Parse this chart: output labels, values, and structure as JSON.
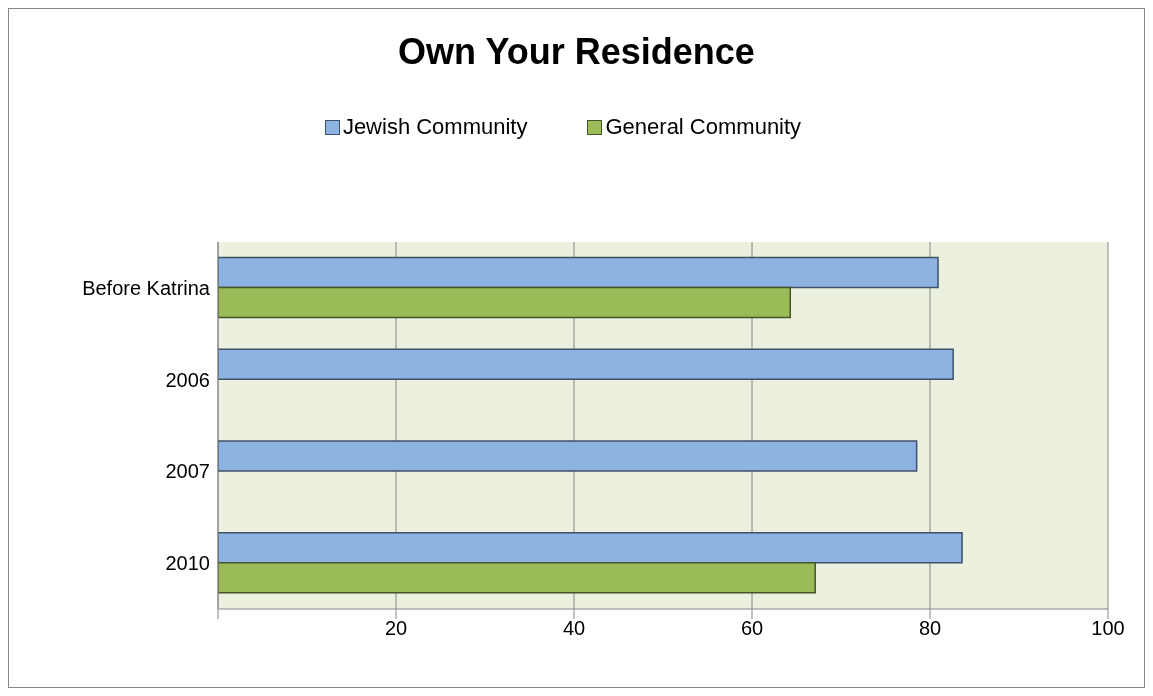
{
  "chart_data": {
    "type": "bar",
    "orientation": "horizontal",
    "title": "Own Your Residence",
    "categories": [
      "Before Katrina",
      "2006",
      "2007",
      "2010"
    ],
    "series": [
      {
        "name": "Jewish Community",
        "color": "#8db3e2",
        "values": [
          80.9,
          82.6,
          78.5,
          83.6
        ]
      },
      {
        "name": "General Community",
        "color": "#9bbb59",
        "values": [
          64.3,
          null,
          null,
          67.1
        ]
      }
    ],
    "xlim": [
      0,
      100
    ],
    "xticks": [
      {
        "value": 0,
        "label": null
      },
      20,
      40,
      60,
      80,
      100
    ],
    "grid": "x",
    "legend": "top"
  }
}
